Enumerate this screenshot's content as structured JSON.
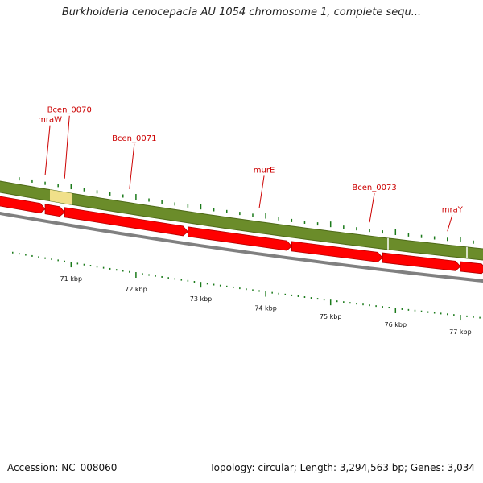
{
  "title": "Burkholderia cenocepacia AU 1054 chromosome 1, complete sequ...",
  "footer": {
    "accession": "Accession: NC_008060",
    "summary": "Topology: circular; Length: 3,294,563 bp; Genes: 3,034"
  },
  "colors": {
    "feature_band": "#6b8c2a",
    "highlight_segment": "#f0e08a",
    "gene_arrow": "#ff0000",
    "gene_label": "#cc0000",
    "tick": "#1a7a1a",
    "backbone": "#808080"
  },
  "gene_labels": [
    {
      "name": "mraW",
      "position_kbp": 70.6
    },
    {
      "name": "Bcen_0070",
      "position_kbp": 70.9
    },
    {
      "name": "Bcen_0071",
      "position_kbp": 71.9
    },
    {
      "name": "murE",
      "position_kbp": 73.9
    },
    {
      "name": "Bcen_0073",
      "position_kbp": 75.6
    },
    {
      "name": "mraY",
      "position_kbp": 76.8
    }
  ],
  "genes": [
    {
      "start_kbp": 69.9,
      "end_kbp": 70.6
    },
    {
      "start_kbp": 70.6,
      "end_kbp": 70.9
    },
    {
      "start_kbp": 70.9,
      "end_kbp": 72.8
    },
    {
      "start_kbp": 72.8,
      "end_kbp": 74.4
    },
    {
      "start_kbp": 74.4,
      "end_kbp": 75.8
    },
    {
      "start_kbp": 75.8,
      "end_kbp": 77.0
    },
    {
      "start_kbp": 77.0,
      "end_kbp": 77.4
    }
  ],
  "scale_labels": [
    "71 kbp",
    "72 kbp",
    "73 kbp",
    "74 kbp",
    "75 kbp",
    "76 kbp",
    "77 kbp"
  ],
  "scale_values_kbp": [
    71,
    72,
    73,
    74,
    75,
    76,
    77
  ]
}
